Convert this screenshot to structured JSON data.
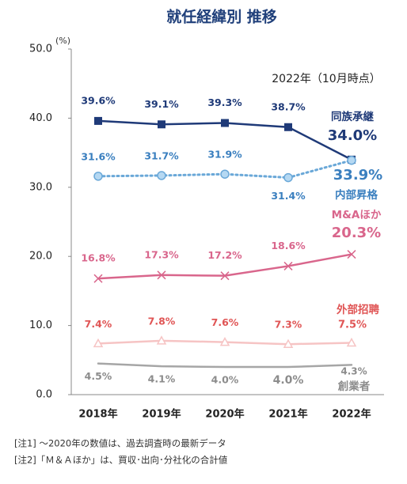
{
  "chart_data": {
    "type": "line",
    "title": "就任経緯別 推移",
    "y_unit": "(%)",
    "annotation": "2022年（10月時点）",
    "categories": [
      "2018年",
      "2019年",
      "2020年",
      "2021年",
      "2022年"
    ],
    "ylim": [
      0,
      50
    ],
    "yticks": [
      {
        "value": 0,
        "label": "0.0"
      },
      {
        "value": 10,
        "label": "10.0"
      },
      {
        "value": 20,
        "label": "20.0"
      },
      {
        "value": 30,
        "label": "30.0"
      },
      {
        "value": 40,
        "label": "40.0"
      },
      {
        "value": 50,
        "label": "50.0"
      }
    ],
    "grid": false,
    "series": [
      {
        "name": "同族承継",
        "color": "#1f3a78",
        "label_color": "#1f3a78",
        "marker": "square",
        "dotted": false,
        "values": [
          39.6,
          39.1,
          39.3,
          38.7,
          34.0
        ],
        "value_labels": [
          "39.6%",
          "39.1%",
          "39.3%",
          "38.7%",
          "34.0%"
        ]
      },
      {
        "name": "内部昇格",
        "color": "#6aa8d8",
        "label_color": "#3a7fbf",
        "marker": "circle",
        "dotted": true,
        "values": [
          31.6,
          31.7,
          31.9,
          31.4,
          33.9
        ],
        "value_labels": [
          "31.6%",
          "31.7%",
          "31.9%",
          "31.4%",
          "33.9%"
        ]
      },
      {
        "name": "M&Aほか",
        "color": "#d9668c",
        "label_color": "#d9668c",
        "marker": "x",
        "dotted": false,
        "values": [
          16.8,
          17.3,
          17.2,
          18.6,
          20.3
        ],
        "value_labels": [
          "16.8%",
          "17.3%",
          "17.2%",
          "18.6%",
          "20.3%"
        ]
      },
      {
        "name": "外部招聘",
        "color": "#f6c4c4",
        "label_color": "#e05555",
        "marker": "triangle",
        "dotted": false,
        "values": [
          7.4,
          7.8,
          7.6,
          7.3,
          7.5
        ],
        "value_labels": [
          "7.4%",
          "7.8%",
          "7.6%",
          "7.3%",
          "7.5%"
        ]
      },
      {
        "name": "創業者",
        "color": "#a6a6a6",
        "label_color": "#8c8c8c",
        "marker": "none",
        "dotted": false,
        "values": [
          4.5,
          4.1,
          4.0,
          4.0,
          4.3
        ],
        "value_labels": [
          "4.5%",
          "4.1%",
          "4.0%",
          "4.0%",
          "4.3%"
        ]
      }
    ],
    "notes": [
      "[注1] ～2020年の数値は、過去調査時の最新データ",
      "[注2]「Ｍ＆Ａほか」は、買収･出向･分社化の合計値"
    ]
  }
}
